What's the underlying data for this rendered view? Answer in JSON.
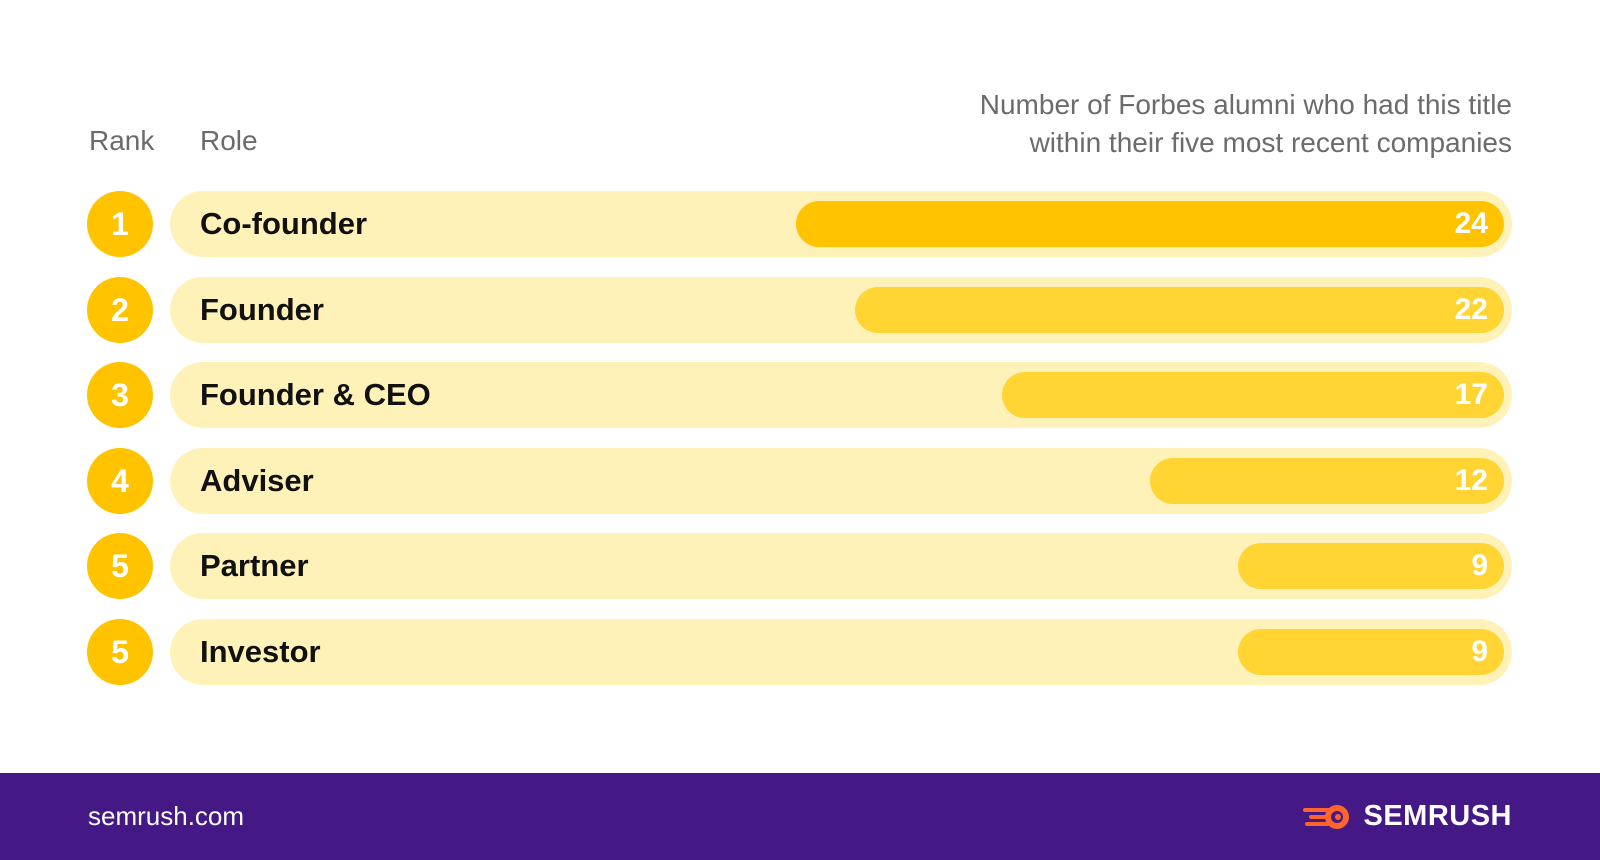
{
  "chart_data": {
    "type": "bar",
    "orientation": "horizontal",
    "headers": {
      "rank": "Rank",
      "role": "Role",
      "metric_line1": "Number of Forbes alumni who had this title",
      "metric_line2": "within their five most recent companies"
    },
    "rows": [
      {
        "rank": "1",
        "role": "Co-founder",
        "value": 24
      },
      {
        "rank": "2",
        "role": "Founder",
        "value": 22
      },
      {
        "rank": "3",
        "role": "Founder & CEO",
        "value": 17
      },
      {
        "rank": "4",
        "role": "Adviser",
        "value": 12
      },
      {
        "rank": "5",
        "role": "Partner",
        "value": 9
      },
      {
        "rank": "5",
        "role": "Investor",
        "value": 9
      }
    ],
    "xlim": [
      0,
      24
    ],
    "grid": false,
    "colors": {
      "rank_circle": "#FFC300",
      "track": "#FFF2B8",
      "bar_top": "#FFC300",
      "bar": "#FFD433"
    }
  },
  "footer": {
    "site": "semrush.com",
    "brand": "SEMRUSH",
    "brand_icon": "semrush-fireball-icon",
    "background": "#441885",
    "brand_accent": "#FF642D"
  }
}
